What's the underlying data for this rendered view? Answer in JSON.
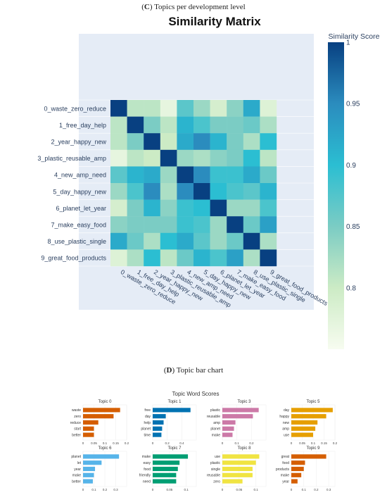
{
  "panel_c": {
    "letter": "C",
    "caption": "Topics per development level"
  },
  "panel_d": {
    "letter": "D",
    "caption": "Topic bar chart"
  },
  "chart_data": [
    {
      "type": "heatmap",
      "title": "Similarity Matrix",
      "colorbar": {
        "title": "Similarity Score",
        "range": [
          0.75,
          1.0
        ],
        "ticks": [
          1,
          0.95,
          0.9,
          0.85,
          0.8
        ]
      },
      "labels": [
        "0_waste_zero_reduce",
        "1_free_day_help",
        "2_year_happy_new",
        "3_plastic_reusable_amp",
        "4_new_amp_need",
        "5_day_happy_new",
        "6_planet_let_year",
        "7_make_easy_food",
        "8_use_plastic_single",
        "9_great_food_products"
      ],
      "values": [
        [
          1.0,
          0.81,
          0.81,
          0.77,
          0.87,
          0.83,
          0.79,
          0.84,
          0.92,
          0.78
        ],
        [
          0.81,
          1.0,
          0.85,
          0.81,
          0.91,
          0.88,
          0.85,
          0.85,
          0.86,
          0.82
        ],
        [
          0.81,
          0.85,
          1.0,
          0.8,
          0.92,
          0.95,
          0.91,
          0.85,
          0.82,
          0.9
        ],
        [
          0.77,
          0.81,
          0.8,
          1.0,
          0.83,
          0.82,
          0.84,
          0.85,
          0.9,
          0.81
        ],
        [
          0.87,
          0.91,
          0.92,
          0.83,
          1.0,
          0.95,
          0.89,
          0.89,
          0.92,
          0.86
        ],
        [
          0.83,
          0.88,
          0.95,
          0.82,
          0.95,
          1.0,
          0.9,
          0.88,
          0.87,
          0.91
        ],
        [
          0.79,
          0.85,
          0.91,
          0.84,
          0.89,
          0.9,
          1.0,
          0.83,
          0.83,
          0.88
        ],
        [
          0.84,
          0.85,
          0.85,
          0.85,
          0.89,
          0.88,
          0.83,
          1.0,
          0.86,
          0.93
        ],
        [
          0.92,
          0.86,
          0.82,
          0.9,
          0.92,
          0.87,
          0.83,
          0.86,
          1.0,
          0.82
        ],
        [
          0.78,
          0.82,
          0.9,
          0.81,
          0.86,
          0.91,
          0.88,
          0.93,
          0.82,
          1.0
        ]
      ]
    },
    {
      "type": "bar",
      "title": "Topic Word Scores",
      "orientation": "horizontal",
      "subplots": [
        {
          "name": "Topic 0",
          "color": "#d55e00",
          "words": [
            "waste",
            "zero",
            "reduce",
            "start",
            "better"
          ],
          "values": [
            0.17,
            0.14,
            0.07,
            0.05,
            0.05
          ],
          "xticks": [
            0,
            0.05,
            0.1,
            0.15,
            0.2
          ],
          "xmax": 0.2
        },
        {
          "name": "Topic 1",
          "color": "#0072b2",
          "words": [
            "free",
            "day",
            "help",
            "planet",
            "time"
          ],
          "values": [
            0.52,
            0.18,
            0.15,
            0.13,
            0.12
          ],
          "xticks": [
            0,
            0.2,
            0.4
          ],
          "xmax": 0.6
        },
        {
          "name": "Topic 3",
          "color": "#cc79a7",
          "words": [
            "plastic",
            "reusable",
            "amp",
            "planet",
            "make"
          ],
          "values": [
            0.25,
            0.21,
            0.09,
            0.08,
            0.07
          ],
          "xticks": [
            0,
            0.1,
            0.2
          ],
          "xmax": 0.3
        },
        {
          "name": "Topic 5",
          "color": "#e69f00",
          "words": [
            "day",
            "happy",
            "new",
            "amp",
            "use"
          ],
          "values": [
            0.19,
            0.16,
            0.12,
            0.11,
            0.1
          ],
          "xticks": [
            0,
            0.05,
            0.1,
            0.15,
            0.2
          ],
          "xmax": 0.2
        },
        {
          "name": "Topic 6",
          "color": "#56b4e9",
          "words": [
            "planet",
            "let",
            "year",
            "make",
            "better"
          ],
          "values": [
            0.33,
            0.17,
            0.11,
            0.1,
            0.09
          ],
          "xticks": [
            0,
            0.1,
            0.2,
            0.3
          ],
          "xmax": 0.4
        },
        {
          "name": "Topic 7",
          "color": "#009e73",
          "words": [
            "make",
            "easy",
            "food",
            "friendly",
            "need"
          ],
          "values": [
            0.105,
            0.08,
            0.075,
            0.07,
            0.07
          ],
          "xticks": [
            0,
            0.05,
            0.1
          ],
          "xmax": 0.13
        },
        {
          "name": "Topic 8",
          "color": "#f0e442",
          "words": [
            "use",
            "plastic",
            "single",
            "reusable",
            "zero"
          ],
          "values": [
            0.11,
            0.1,
            0.09,
            0.09,
            0.06
          ],
          "xticks": [
            0,
            0.05,
            0.1
          ],
          "xmax": 0.13
        },
        {
          "name": "Topic 9",
          "color": "#d55e00",
          "words": [
            "great",
            "food",
            "products",
            "make",
            "year"
          ],
          "values": [
            0.28,
            0.11,
            0.1,
            0.08,
            0.05
          ],
          "xticks": [
            0,
            0.1,
            0.2,
            0.3
          ],
          "xmax": 0.35
        }
      ]
    }
  ]
}
